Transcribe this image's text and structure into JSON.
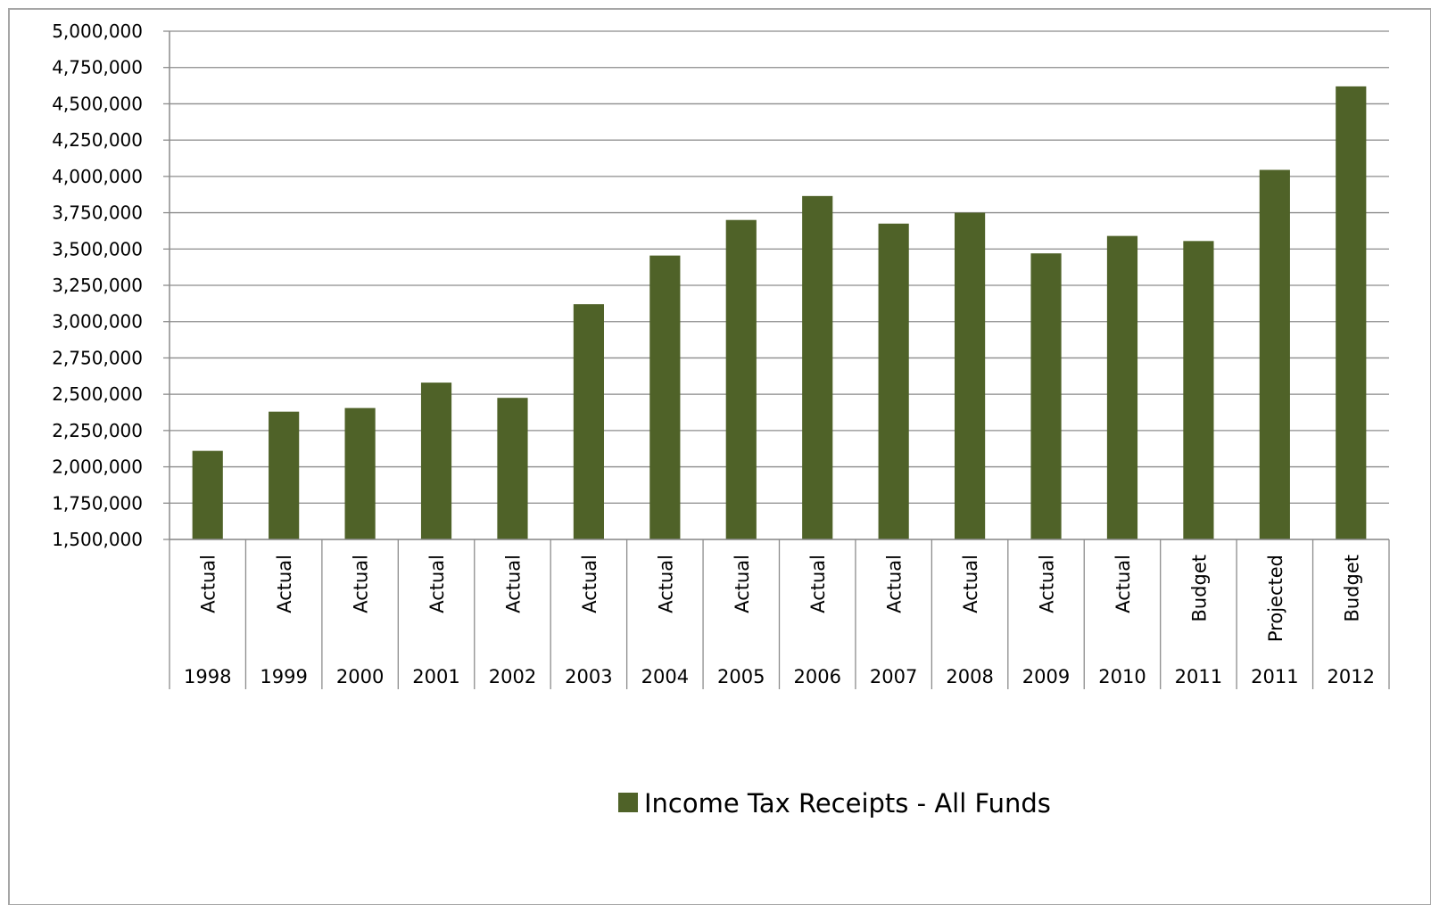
{
  "chart_data": {
    "type": "bar",
    "ylim": [
      1500000,
      5000000
    ],
    "y_ticks": [
      "1,500,000",
      "1,750,000",
      "2,000,000",
      "2,250,000",
      "2,500,000",
      "2,750,000",
      "3,000,000",
      "3,250,000",
      "3,500,000",
      "3,750,000",
      "4,000,000",
      "4,250,000",
      "4,500,000",
      "4,750,000",
      "5,000,000"
    ],
    "y_tick_values": [
      1500000,
      1750000,
      2000000,
      2250000,
      2500000,
      2750000,
      3000000,
      3250000,
      3500000,
      3750000,
      4000000,
      4250000,
      4500000,
      4750000,
      5000000
    ],
    "grid": true,
    "legend_position": "bottom",
    "bar_color": "#4f6228",
    "categories": [
      {
        "status": "Actual",
        "year": "1998"
      },
      {
        "status": "Actual",
        "year": "1999"
      },
      {
        "status": "Actual",
        "year": "2000"
      },
      {
        "status": "Actual",
        "year": "2001"
      },
      {
        "status": "Actual",
        "year": "2002"
      },
      {
        "status": "Actual",
        "year": "2003"
      },
      {
        "status": "Actual",
        "year": "2004"
      },
      {
        "status": "Actual",
        "year": "2005"
      },
      {
        "status": "Actual",
        "year": "2006"
      },
      {
        "status": "Actual",
        "year": "2007"
      },
      {
        "status": "Actual",
        "year": "2008"
      },
      {
        "status": "Actual",
        "year": "2009"
      },
      {
        "status": "Actual",
        "year": "2010"
      },
      {
        "status": "Budget",
        "year": "2011"
      },
      {
        "status": "Projected",
        "year": "2011"
      },
      {
        "status": "Budget",
        "year": "2012"
      }
    ],
    "series": [
      {
        "name": "Income Tax Receipts - All Funds",
        "values": [
          2110000,
          2380000,
          2405000,
          2580000,
          2475000,
          3120000,
          3455000,
          3700000,
          3865000,
          3675000,
          3750000,
          3470000,
          3590000,
          3555000,
          4045000,
          4620000
        ]
      }
    ]
  }
}
